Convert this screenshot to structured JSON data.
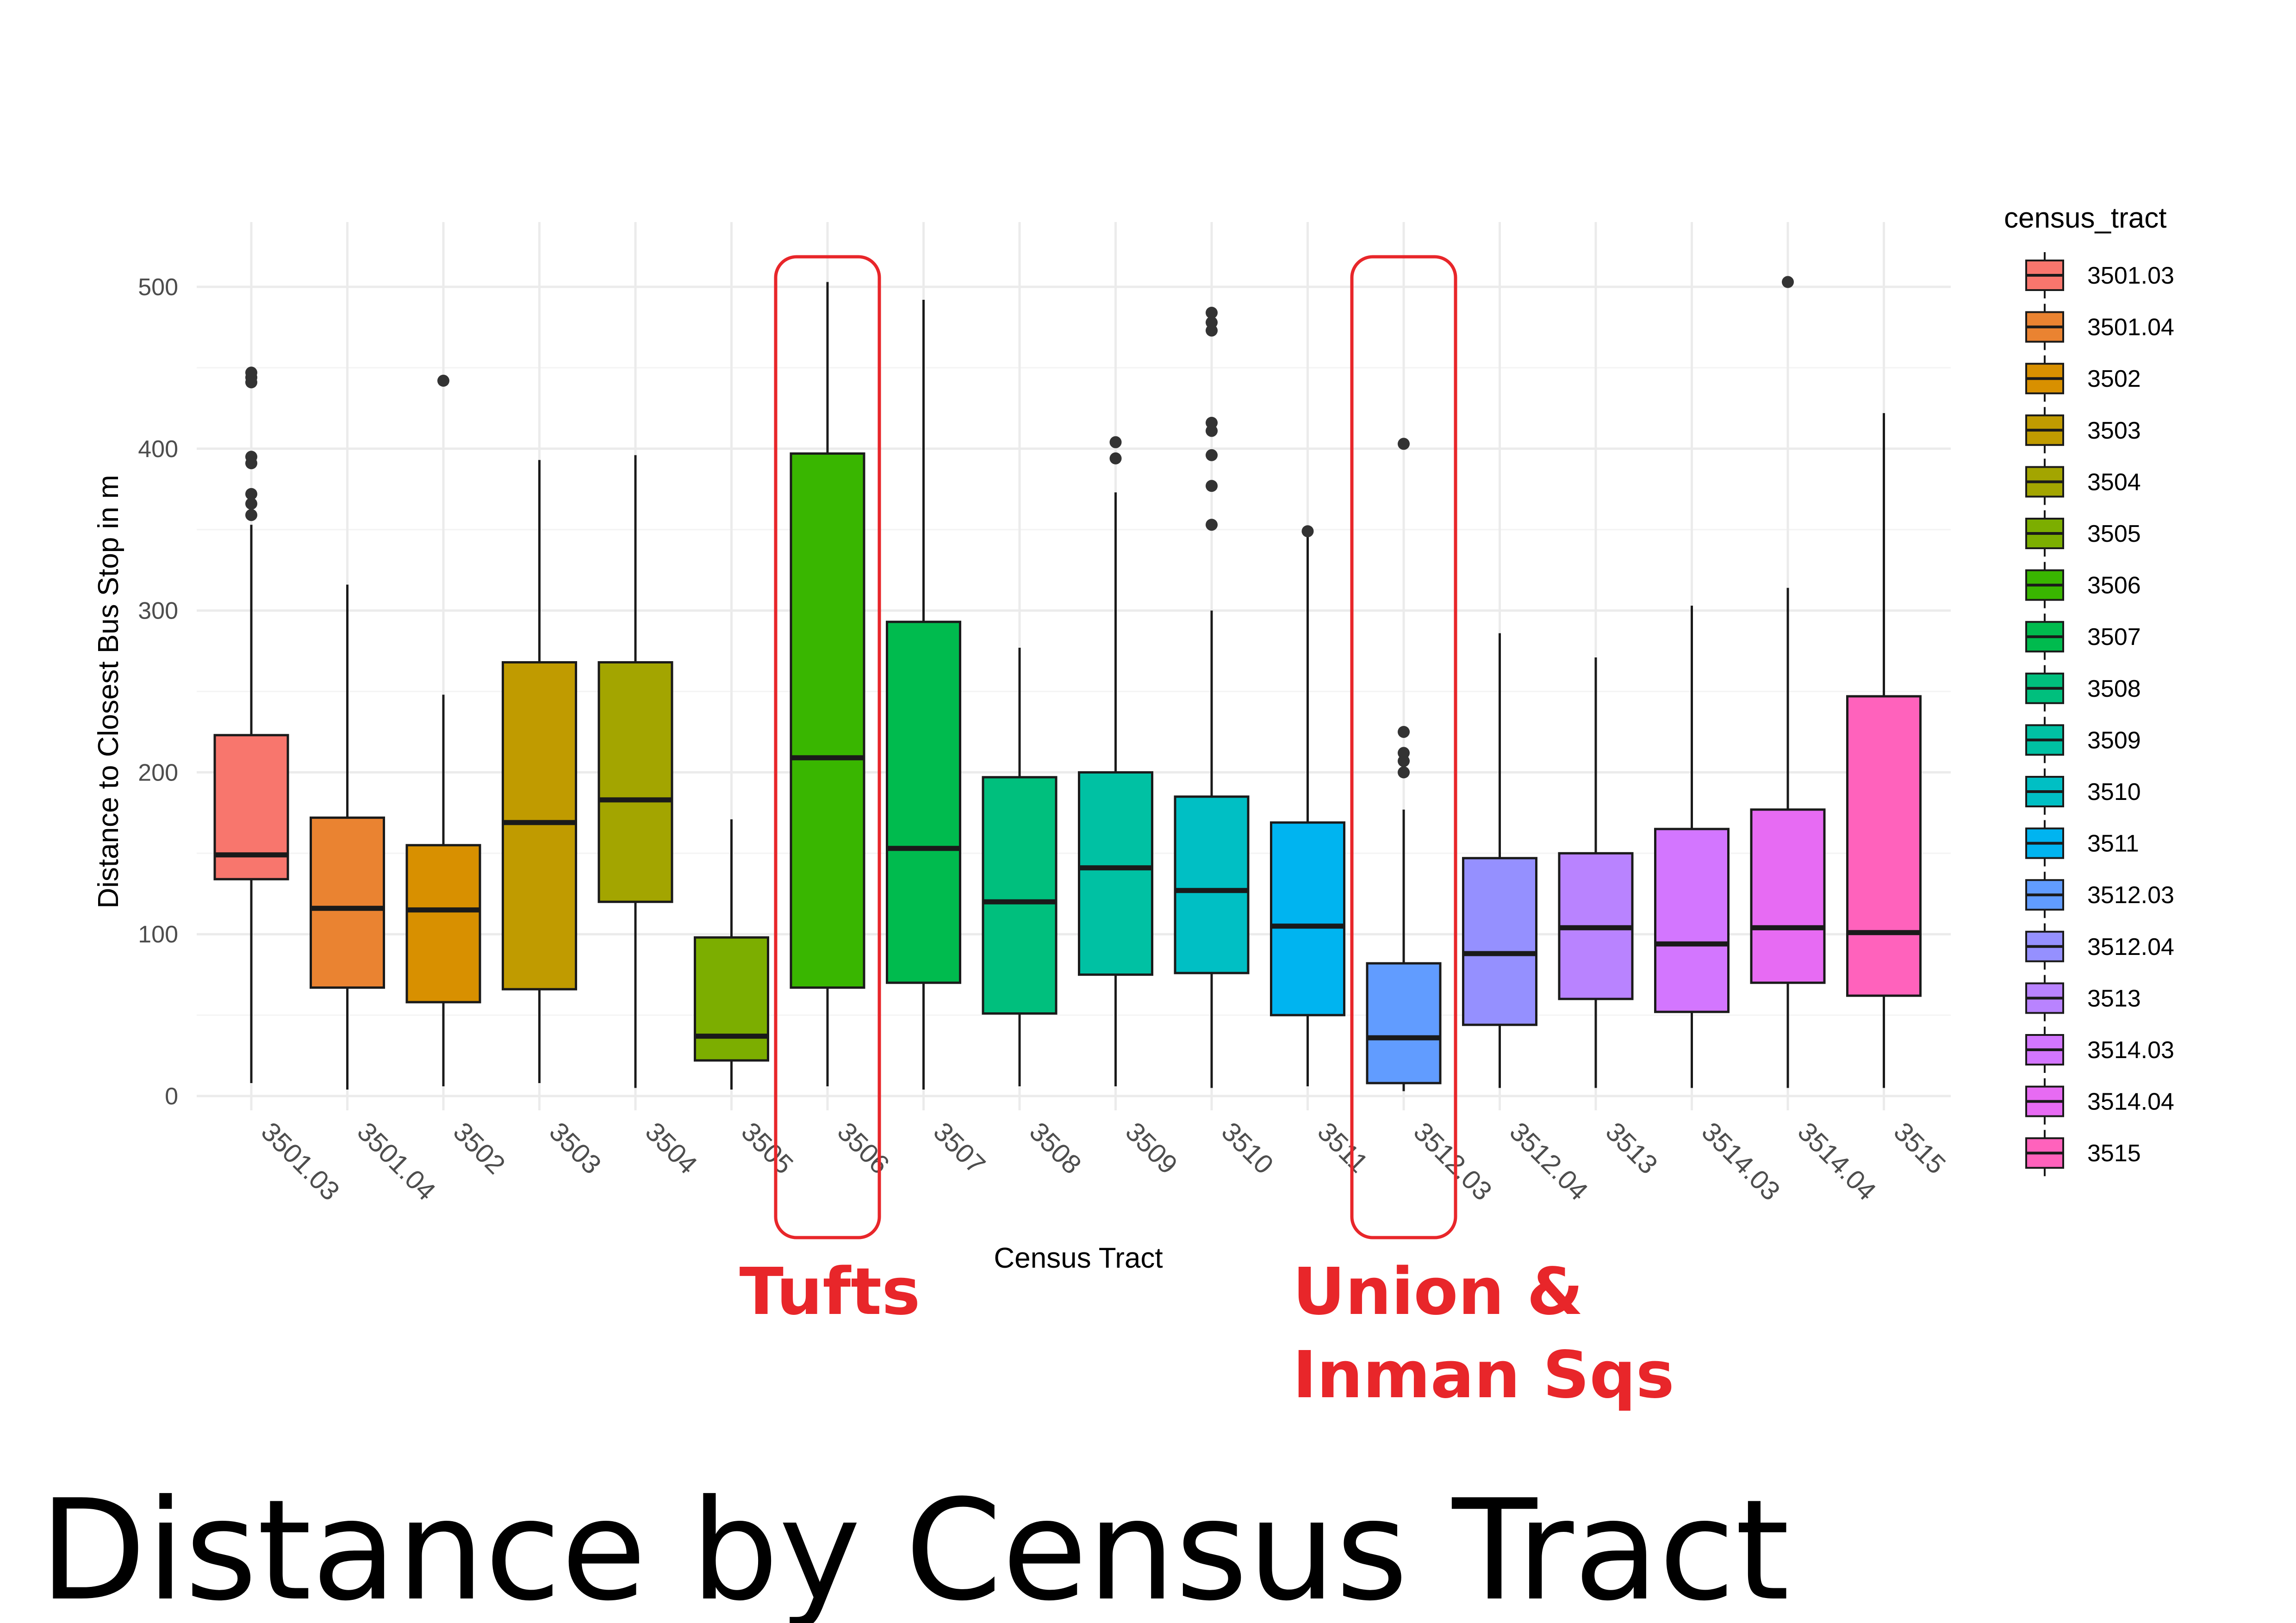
{
  "title": "Distance  by Census Tract",
  "chart_data": {
    "type": "boxplot",
    "xlabel": "Census Tract",
    "ylabel": "Distance to Closest Bus Stop in m",
    "ylim": [
      0,
      525
    ],
    "yticks": [
      0,
      100,
      200,
      300,
      400,
      500
    ],
    "grid": true,
    "legend": {
      "title": "census_tract",
      "position": "right"
    },
    "categories": [
      "3501.03",
      "3501.04",
      "3502",
      "3503",
      "3504",
      "3505",
      "3506",
      "3507",
      "3508",
      "3509",
      "3510",
      "3511",
      "3512.03",
      "3512.04",
      "3513",
      "3514.03",
      "3514.04",
      "3515"
    ],
    "series": [
      {
        "category": "3501.03",
        "color": "#F8766D",
        "min": 8,
        "q1": 134,
        "median": 149,
        "q3": 223,
        "max": 353,
        "outliers": [
          359,
          366,
          372,
          391,
          395,
          441,
          444,
          447
        ]
      },
      {
        "category": "3501.04",
        "color": "#EA8331",
        "min": 4,
        "q1": 67,
        "median": 116,
        "q3": 172,
        "max": 316,
        "outliers": []
      },
      {
        "category": "3502",
        "color": "#D89000",
        "min": 6,
        "q1": 58,
        "median": 115,
        "q3": 155,
        "max": 248,
        "outliers": [
          442
        ]
      },
      {
        "category": "3503",
        "color": "#C09B00",
        "min": 8,
        "q1": 66,
        "median": 169,
        "q3": 268,
        "max": 393,
        "outliers": []
      },
      {
        "category": "3504",
        "color": "#A3A500",
        "min": 5,
        "q1": 120,
        "median": 183,
        "q3": 268,
        "max": 396,
        "outliers": []
      },
      {
        "category": "3505",
        "color": "#7CAE00",
        "min": 4,
        "q1": 22,
        "median": 37,
        "q3": 98,
        "max": 171,
        "outliers": []
      },
      {
        "category": "3506",
        "color": "#39B600",
        "min": 6,
        "q1": 67,
        "median": 209,
        "q3": 397,
        "max": 503,
        "outliers": []
      },
      {
        "category": "3507",
        "color": "#00BB4E",
        "min": 4,
        "q1": 70,
        "median": 153,
        "q3": 293,
        "max": 492,
        "outliers": []
      },
      {
        "category": "3508",
        "color": "#00BF7D",
        "min": 6,
        "q1": 51,
        "median": 120,
        "q3": 197,
        "max": 277,
        "outliers": []
      },
      {
        "category": "3509",
        "color": "#00C1A3",
        "min": 6,
        "q1": 75,
        "median": 141,
        "q3": 200,
        "max": 373,
        "outliers": [
          394,
          404
        ]
      },
      {
        "category": "3510",
        "color": "#00BFC4",
        "min": 5,
        "q1": 76,
        "median": 127,
        "q3": 185,
        "max": 300,
        "outliers": [
          353,
          377,
          396,
          411,
          416,
          473,
          478,
          484
        ]
      },
      {
        "category": "3511",
        "color": "#00B4F0",
        "min": 6,
        "q1": 50,
        "median": 105,
        "q3": 169,
        "max": 348,
        "outliers": [
          349
        ]
      },
      {
        "category": "3512.03",
        "color": "#619CFF",
        "min": 3,
        "q1": 8,
        "median": 36,
        "q3": 82,
        "max": 177,
        "outliers": [
          200,
          207,
          212,
          225,
          403
        ]
      },
      {
        "category": "3512.04",
        "color": "#9590FF",
        "min": 5,
        "q1": 44,
        "median": 88,
        "q3": 147,
        "max": 286,
        "outliers": []
      },
      {
        "category": "3513",
        "color": "#B983FF",
        "min": 5,
        "q1": 60,
        "median": 104,
        "q3": 150,
        "max": 271,
        "outliers": []
      },
      {
        "category": "3514.03",
        "color": "#D376FF",
        "min": 5,
        "q1": 52,
        "median": 94,
        "q3": 165,
        "max": 303,
        "outliers": []
      },
      {
        "category": "3514.04",
        "color": "#E76BF3",
        "min": 5,
        "q1": 70,
        "median": 104,
        "q3": 177,
        "max": 314,
        "outliers": [
          503
        ]
      },
      {
        "category": "3515",
        "color": "#FF62BC",
        "min": 5,
        "q1": 62,
        "median": 101,
        "q3": 247,
        "max": 422,
        "outliers": []
      }
    ],
    "annotations": [
      {
        "text": "Tufts",
        "category": "3506",
        "color": "#e8262a"
      },
      {
        "text": "Union & Inman Sqs",
        "lines": [
          "Union &",
          "Inman Sqs"
        ],
        "category": "3512.03",
        "color": "#e8262a"
      }
    ]
  }
}
